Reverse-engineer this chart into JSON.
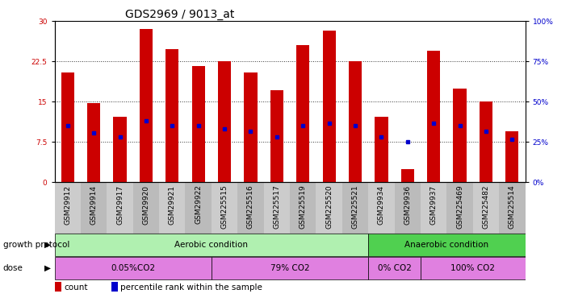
{
  "title": "GDS2969 / 9013_at",
  "samples": [
    "GSM29912",
    "GSM29914",
    "GSM29917",
    "GSM29920",
    "GSM29921",
    "GSM29922",
    "GSM225515",
    "GSM225516",
    "GSM225517",
    "GSM225519",
    "GSM225520",
    "GSM225521",
    "GSM29934",
    "GSM29936",
    "GSM29937",
    "GSM225469",
    "GSM225482",
    "GSM225514"
  ],
  "counts": [
    20.5,
    14.7,
    12.2,
    28.6,
    24.8,
    21.7,
    22.5,
    20.5,
    17.2,
    25.5,
    28.2,
    22.5,
    12.2,
    2.5,
    24.5,
    17.5,
    15.0,
    9.5
  ],
  "percentile_ranks": [
    10.5,
    9.2,
    8.5,
    11.5,
    10.5,
    10.5,
    10.0,
    9.5,
    8.5,
    10.5,
    11.0,
    10.5,
    8.5,
    7.5,
    11.0,
    10.5,
    9.5,
    8.0
  ],
  "ylim_left": [
    0,
    30
  ],
  "ylim_right": [
    0,
    100
  ],
  "yticks_left": [
    0,
    7.5,
    15,
    22.5,
    30
  ],
  "yticks_right": [
    0,
    25,
    50,
    75,
    100
  ],
  "bar_color": "#cc0000",
  "dot_color": "#0000cc",
  "bar_width": 0.5,
  "growth_protocol_label": "growth protocol",
  "dose_label": "dose",
  "aerobic_label": "Aerobic condition",
  "anaerobic_label": "Anaerobic condition",
  "dose_labels": [
    "0.05%CO2",
    "79% CO2",
    "0% CO2",
    "100% CO2"
  ],
  "aerobic_color": "#b0f0b0",
  "anaerobic_color": "#50d050",
  "dose_color": "#e080e0",
  "legend_count_label": "count",
  "legend_pct_label": "percentile rank within the sample",
  "title_fontsize": 10,
  "tick_fontsize": 6.5,
  "label_fontsize": 7.5,
  "grid_linestyle": ":",
  "grid_color": "#000000",
  "grid_alpha": 0.8,
  "xticklabel_bg": "#d0d0d0"
}
